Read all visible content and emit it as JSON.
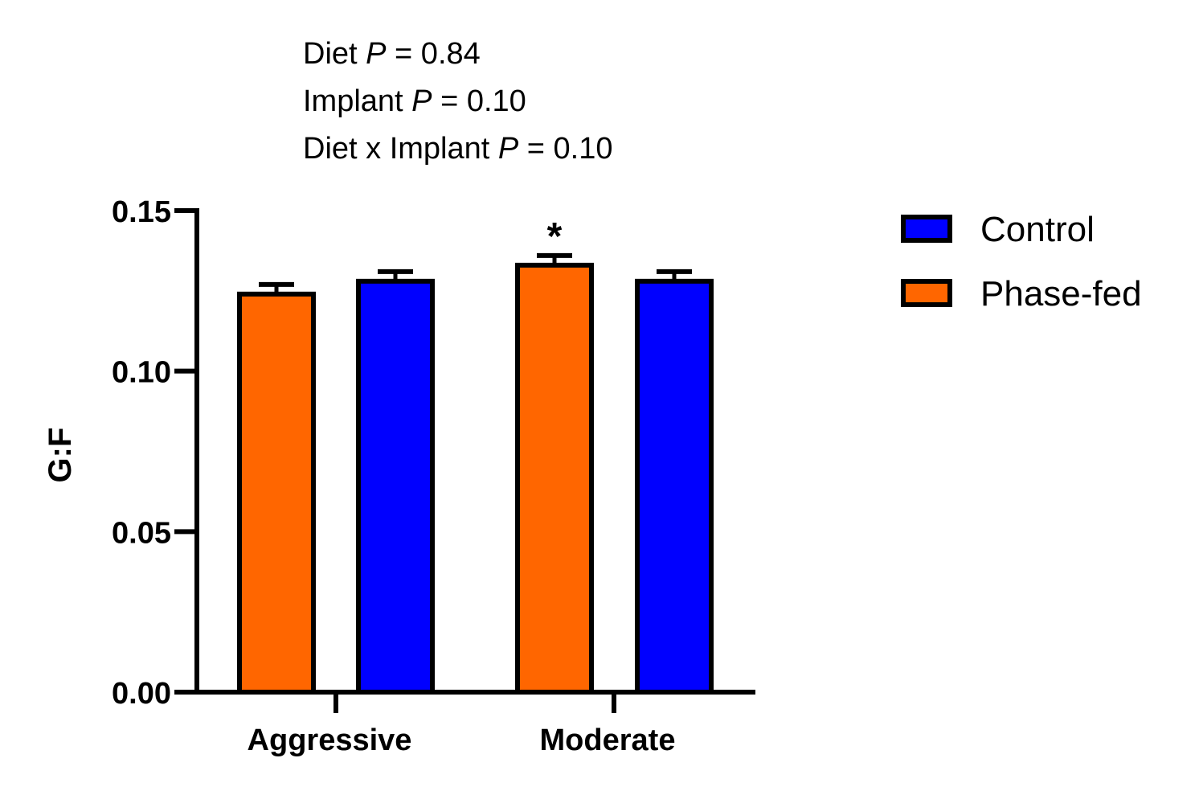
{
  "chart_data": {
    "type": "bar",
    "title": "",
    "annotations": [
      {
        "prefix": "Diet ",
        "p": "P",
        "suffix": " = 0.84"
      },
      {
        "prefix": "Implant ",
        "p": "P",
        "suffix": " = 0.10"
      },
      {
        "prefix": "Diet x Implant ",
        "p": "P",
        "suffix": " = 0.10"
      }
    ],
    "xlabel": "",
    "ylabel": "G:F",
    "ylim": [
      0,
      0.15
    ],
    "yticks": [
      0.0,
      0.05,
      0.1,
      0.15
    ],
    "ytick_labels": [
      "0.00",
      "0.05",
      "0.10",
      "0.15"
    ],
    "categories": [
      "Aggressive",
      "Moderate"
    ],
    "bars": [
      {
        "category": "Aggressive",
        "series": "Phase-fed",
        "value": 0.124,
        "error": 0.003,
        "significance": ""
      },
      {
        "category": "Aggressive",
        "series": "Control",
        "value": 0.128,
        "error": 0.003,
        "significance": ""
      },
      {
        "category": "Moderate",
        "series": "Phase-fed",
        "value": 0.133,
        "error": 0.003,
        "significance": "*"
      },
      {
        "category": "Moderate",
        "series": "Control",
        "value": 0.128,
        "error": 0.003,
        "significance": ""
      }
    ],
    "series": [
      {
        "name": "Control",
        "color": "#0000ff",
        "values": [
          0.128,
          0.128
        ]
      },
      {
        "name": "Phase-fed",
        "color": "#ff6600",
        "values": [
          0.124,
          0.133
        ]
      }
    ],
    "legend": {
      "position": "right",
      "entries": [
        {
          "label": "Control",
          "color": "#0000ff"
        },
        {
          "label": "Phase-fed",
          "color": "#ff6600"
        }
      ]
    },
    "grid": false
  }
}
